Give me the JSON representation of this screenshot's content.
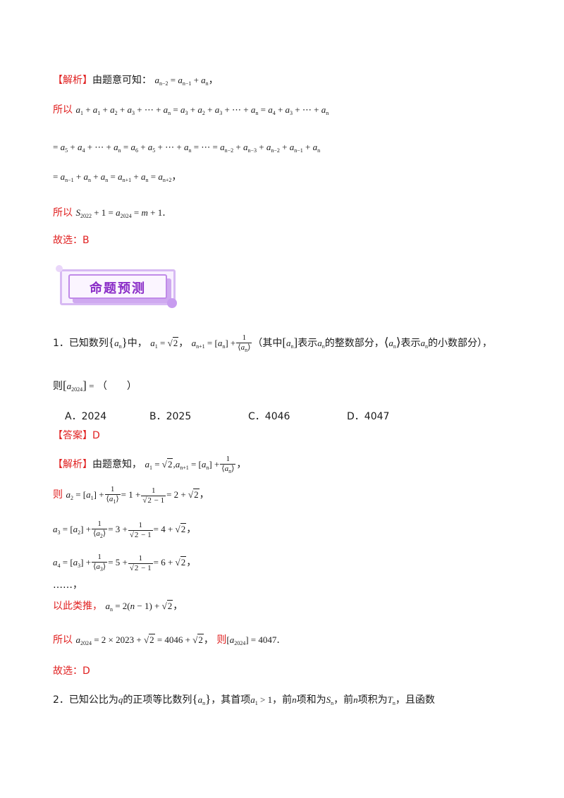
{
  "tags": {
    "analysis": "【解析】",
    "answer": "【答案】"
  },
  "block1": {
    "intro": "由题意可知：",
    "recurrence": "a",
    "so1": "所以",
    "so2": "所以",
    "choose": "故选：B"
  },
  "banner": {
    "title": "命题预测"
  },
  "q1": {
    "number": "1．",
    "text_a": "已知数列",
    "text_b": "中，",
    "paren": "（其中",
    "text_c": "表示",
    "text_d": "的整数部分，",
    "text_e": "表示",
    "text_f": "的小数部分），",
    "then": "则",
    "blank": "（　　）",
    "options": [
      {
        "label": "A．",
        "value": "2024"
      },
      {
        "label": "B．",
        "value": "2025"
      },
      {
        "label": "C．",
        "value": "4046"
      },
      {
        "label": "D．",
        "value": "4047"
      }
    ],
    "answer": "D",
    "analysis_intro": "由题意知，",
    "then2": "则",
    "dots": "……，",
    "infer": "以此类推，",
    "so": "所以",
    "then3": "则",
    "choose": "故选：D"
  },
  "q2": {
    "number": "2．",
    "text_a": "已知公比为",
    "text_b": "的正项等比数列",
    "text_c": "，其首项",
    "text_d": "，前",
    "text_e": "项和为",
    "text_f": "，前",
    "text_g": "项积为",
    "text_h": "，且函数"
  }
}
